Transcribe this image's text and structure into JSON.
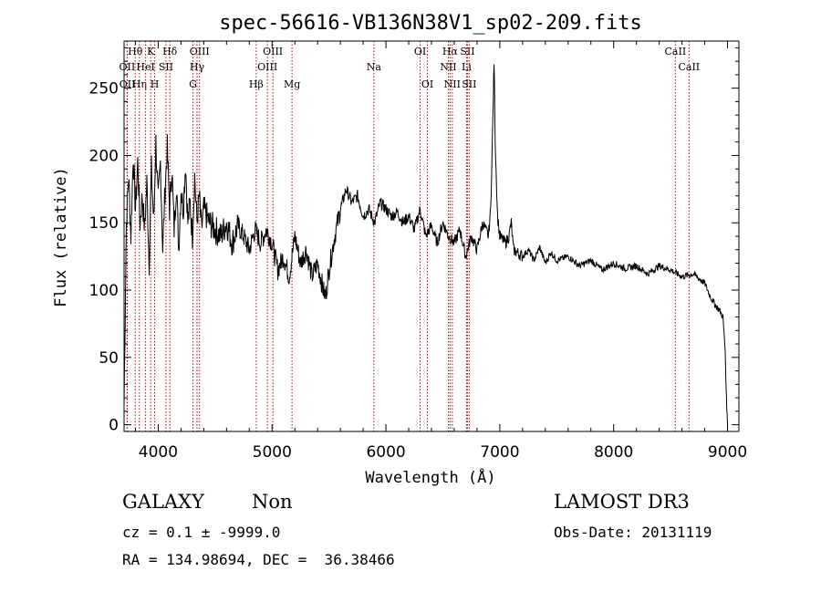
{
  "chart_data": {
    "type": "line",
    "title": "spec-56616-VB136N38V1_sp02-209.fits",
    "xlabel": "Wavelength (Å)",
    "ylabel": "Flux (relative)",
    "xlim": [
      3700,
      9100
    ],
    "ylim": [
      -5,
      285
    ],
    "x_ticks": [
      4000,
      5000,
      6000,
      7000,
      8000,
      9000
    ],
    "y_ticks": [
      0,
      50,
      100,
      150,
      200,
      250
    ],
    "grid": false,
    "line_color": "#000000",
    "marker_color": "#c00000",
    "series": [
      {
        "name": "flux",
        "x": [
          3700,
          3720,
          3740,
          3760,
          3780,
          3800,
          3820,
          3840,
          3860,
          3880,
          3900,
          3920,
          3940,
          3960,
          3980,
          4000,
          4020,
          4040,
          4060,
          4080,
          4100,
          4120,
          4140,
          4160,
          4180,
          4200,
          4220,
          4240,
          4260,
          4280,
          4300,
          4320,
          4340,
          4360,
          4380,
          4400,
          4450,
          4500,
          4550,
          4600,
          4650,
          4700,
          4750,
          4800,
          4850,
          4900,
          4950,
          5000,
          5050,
          5100,
          5150,
          5200,
          5250,
          5300,
          5350,
          5400,
          5450,
          5470,
          5500,
          5550,
          5600,
          5650,
          5700,
          5750,
          5800,
          5850,
          5900,
          5950,
          6000,
          6050,
          6100,
          6150,
          6200,
          6250,
          6300,
          6350,
          6400,
          6450,
          6500,
          6550,
          6600,
          6650,
          6700,
          6750,
          6800,
          6850,
          6900,
          6920,
          6940,
          6950,
          6960,
          6980,
          7000,
          7050,
          7080,
          7100,
          7120,
          7150,
          7200,
          7250,
          7300,
          7350,
          7400,
          7450,
          7500,
          7600,
          7700,
          7800,
          7900,
          8000,
          8100,
          8200,
          8300,
          8400,
          8500,
          8600,
          8700,
          8800,
          8850,
          8900,
          8930,
          8960,
          8980,
          8990,
          9000
        ],
        "y": [
          15,
          150,
          185,
          140,
          200,
          160,
          195,
          150,
          170,
          145,
          180,
          120,
          190,
          150,
          210,
          165,
          195,
          130,
          175,
          205,
          160,
          190,
          145,
          180,
          130,
          175,
          160,
          195,
          150,
          165,
          140,
          185,
          150,
          170,
          145,
          160,
          150,
          145,
          140,
          150,
          135,
          148,
          140,
          130,
          145,
          135,
          145,
          135,
          115,
          125,
          110,
          140,
          120,
          130,
          110,
          120,
          100,
          95,
          115,
          140,
          160,
          175,
          165,
          170,
          155,
          160,
          150,
          165,
          160,
          155,
          158,
          150,
          155,
          145,
          160,
          140,
          148,
          135,
          150,
          140,
          135,
          145,
          125,
          140,
          130,
          150,
          140,
          160,
          230,
          270,
          210,
          155,
          140,
          135,
          140,
          150,
          130,
          128,
          125,
          130,
          122,
          132,
          120,
          128,
          122,
          125,
          118,
          122,
          115,
          120,
          116,
          118,
          112,
          118,
          115,
          110,
          112,
          105,
          95,
          88,
          85,
          80,
          55,
          20,
          0
        ]
      }
    ],
    "lines": [
      {
        "name": "OII",
        "wavelength": 3727,
        "row": 2
      },
      {
        "name": "OII",
        "wavelength": 3729,
        "row": 3
      },
      {
        "name": "Hθ",
        "wavelength": 3798,
        "row": 1
      },
      {
        "name": "Hη",
        "wavelength": 3835,
        "row": 3
      },
      {
        "name": "HeI",
        "wavelength": 3889,
        "row": 2
      },
      {
        "name": "K",
        "wavelength": 3934,
        "row": 1
      },
      {
        "name": "SII",
        "wavelength": 4068,
        "row": 2
      },
      {
        "name": "H",
        "wavelength": 3969,
        "row": 3
      },
      {
        "name": "Hδ",
        "wavelength": 4102,
        "row": 1
      },
      {
        "name": "Hγ",
        "wavelength": 4341,
        "row": 2
      },
      {
        "name": "G",
        "wavelength": 4305,
        "row": 3
      },
      {
        "name": "OIII",
        "wavelength": 4363,
        "row": 1
      },
      {
        "name": "Hβ",
        "wavelength": 4861,
        "row": 3
      },
      {
        "name": "OIII",
        "wavelength": 4959,
        "row": 2
      },
      {
        "name": "OIII",
        "wavelength": 5007,
        "row": 1
      },
      {
        "name": "Mg",
        "wavelength": 5175,
        "row": 3
      },
      {
        "name": "Na",
        "wavelength": 5894,
        "row": 2
      },
      {
        "name": "OI",
        "wavelength": 6300,
        "row": 1
      },
      {
        "name": "OI",
        "wavelength": 6364,
        "row": 3
      },
      {
        "name": "Hα",
        "wavelength": 6563,
        "row": 1
      },
      {
        "name": "NII",
        "wavelength": 6548,
        "row": 2
      },
      {
        "name": "NII",
        "wavelength": 6583,
        "row": 3
      },
      {
        "name": "SII",
        "wavelength": 6716,
        "row": 1
      },
      {
        "name": "Li",
        "wavelength": 6708,
        "row": 2
      },
      {
        "name": "SII",
        "wavelength": 6731,
        "row": 3
      },
      {
        "name": "CaII",
        "wavelength": 8542,
        "row": 1
      },
      {
        "name": "CaII",
        "wavelength": 8662,
        "row": 2
      }
    ]
  },
  "info": {
    "object_class": "GALAXY",
    "subclass": "Non",
    "survey": "LAMOST DR3",
    "redshift": "cz = 0.1 ± -9999.0",
    "obs_date": "Obs-Date: 20131119",
    "coords": "RA = 134.98694, DEC =  36.38466"
  }
}
